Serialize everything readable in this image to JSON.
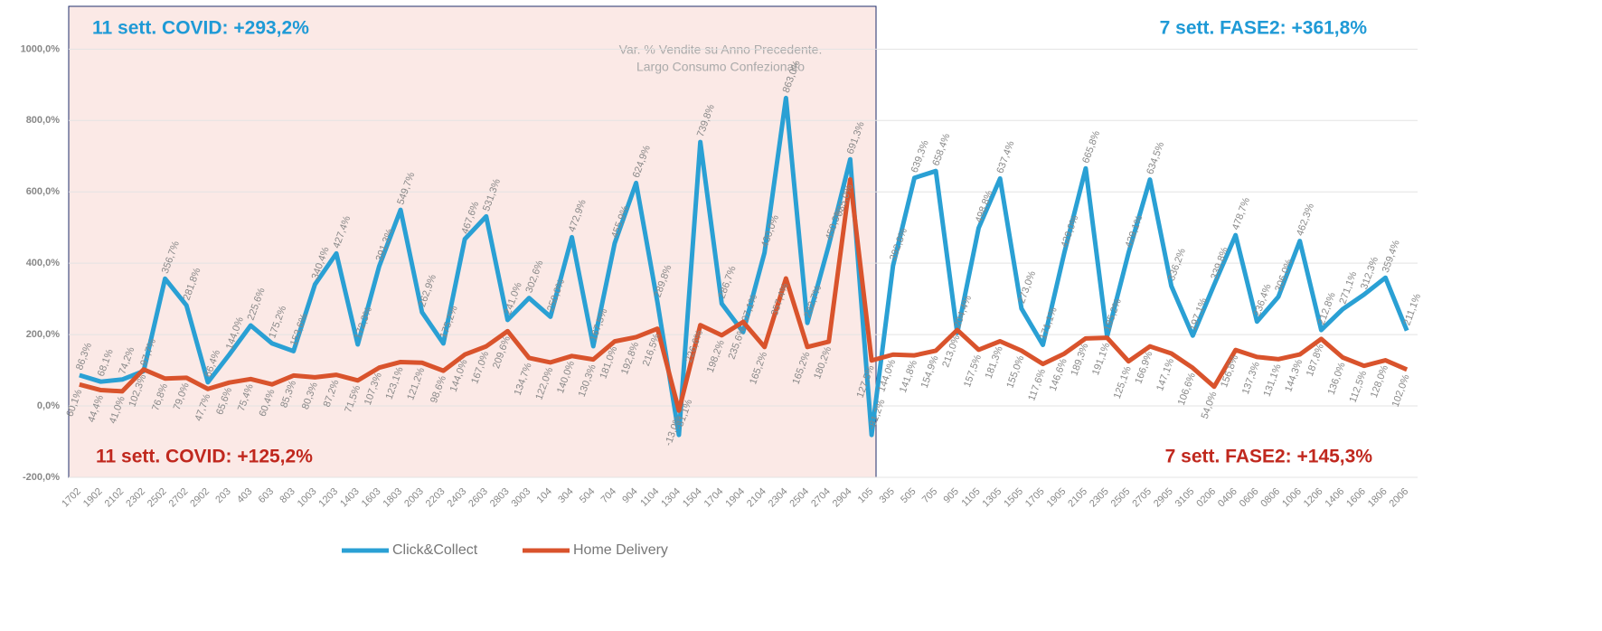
{
  "chart_data": {
    "type": "line",
    "subtitle": [
      "Var. % Vendite su Anno Precedente.",
      "Largo Consumo Confezionato"
    ],
    "annotations": [
      "11 sett. COVID: +293,2%",
      "7 sett. FASE2: +361,8%",
      "11 sett. COVID: +125,2%",
      "7 sett. FASE2: +145,3%"
    ],
    "categories": [
      "1702",
      "1902",
      "2102",
      "2302",
      "2502",
      "2702",
      "2902",
      "203",
      "403",
      "603",
      "803",
      "1003",
      "1203",
      "1403",
      "1603",
      "1803",
      "2003",
      "2203",
      "2403",
      "2603",
      "2803",
      "3003",
      "104",
      "304",
      "504",
      "704",
      "904",
      "1104",
      "1304",
      "1504",
      "1704",
      "1904",
      "2104",
      "2304",
      "2504",
      "2704",
      "2904",
      "105",
      "305",
      "505",
      "705",
      "905",
      "1105",
      "1305",
      "1505",
      "1705",
      "1905",
      "2105",
      "2305",
      "2505",
      "2705",
      "2905",
      "3105",
      "0206",
      "0406",
      "0606",
      "0806",
      "1006",
      "1206",
      "1406",
      "1606",
      "1806",
      "2006"
    ],
    "series": [
      {
        "name": "Click&Collect",
        "color": "#2aa0d4",
        "values": [
          86.3,
          68.1,
          74.2,
          97.7,
          356.7,
          281.8,
          66.4,
          144.0,
          225.6,
          175.2,
          153.6,
          340.4,
          427.4,
          172.3,
          391.3,
          549.7,
          262.9,
          175.2,
          467.6,
          531.3,
          241.0,
          302.6,
          250.0,
          472.9,
          167.5,
          455.9,
          624.9,
          289.8,
          -81.1,
          739.8,
          286.7,
          207.1,
          430.0,
          863.0,
          232.7,
          450.3,
          691.3,
          -81.2,
          392.8,
          639.3,
          658.4,
          204.4,
          498.8,
          637.4,
          273.0,
          171.1,
          429.0,
          665.8,
          195.2,
          429.1,
          634.5,
          336.2,
          197.1,
          339.8,
          478.7,
          236.4,
          306.0,
          462.3,
          212.8,
          271.1,
          312.3,
          359.4,
          211.1
        ],
        "value_labels": [
          "86,3%",
          "68,1%",
          "74,2%",
          "97,7%",
          "356,7%",
          "281,8%",
          "66,4%",
          "144,0%",
          "225,6%",
          "175,2%",
          "153,6%",
          "340,4%",
          "427,4%",
          "172,3%",
          "391,3%",
          "549,7%",
          "262,9%",
          "175,2%",
          "467,6%",
          "531,3%",
          "241,0%",
          "302,6%",
          "250,0%",
          "472,9%",
          "167,5%",
          "455,9%",
          "624,9%",
          "289,8%",
          "-81,1%",
          "739,8%",
          "286,7%",
          "207,1%",
          "430,0%",
          "863,0%",
          "232,7%",
          "450,3%",
          "691,3%",
          "-81,2%",
          "392,8%",
          "639,3%",
          "658,4%",
          "204,4%",
          "498,8%",
          "637,4%",
          "273,0%",
          "171,1%",
          "429,0%",
          "665,8%",
          "195,2%",
          "429,1%",
          "634,5%",
          "336,2%",
          "197,1%",
          "339,8%",
          "478,7%",
          "236,4%",
          "306,0%",
          "462,3%",
          "212,8%",
          "271,1%",
          "312,3%",
          "359,4%",
          "211,1%"
        ]
      },
      {
        "name": "Home Delivery",
        "color": "#d9532c",
        "values": [
          60.1,
          44.4,
          41.0,
          102.3,
          76.8,
          79.0,
          47.7,
          65.6,
          75.4,
          60.4,
          85.3,
          80.3,
          87.2,
          71.5,
          107.3,
          123.1,
          121.2,
          98.6,
          144.0,
          167.0,
          209.6,
          134.7,
          122.0,
          140.0,
          130.3,
          181.0,
          192.8,
          216.5,
          -13.0,
          226.6,
          198.2,
          235.6,
          165.2,
          357.4,
          165.2,
          180.2,
          635.0,
          127.5,
          144.0,
          141.8,
          154.9,
          213.0,
          157.5,
          181.3,
          155.0,
          117.6,
          146.6,
          189.3,
          191.1,
          125.1,
          166.9,
          147.1,
          106.6,
          54.0,
          156.8,
          137.3,
          131.1,
          144.3,
          187.8,
          136.0,
          112.5,
          128.0,
          102.0
        ],
        "value_labels": [
          "60,1%",
          "44,4%",
          "41,0%",
          "102,3%",
          "76,8%",
          "79,0%",
          "47,7%",
          "65,6%",
          "75,4%",
          "60,4%",
          "85,3%",
          "80,3%",
          "87,2%",
          "71,5%",
          "107,3%",
          "123,1%",
          "121,2%",
          "98,6%",
          "144,0%",
          "167,0%",
          "209,6%",
          "134,7%",
          "122,0%",
          "140,0%",
          "130,3%",
          "181,0%",
          "192,8%",
          "216,5%",
          "-13,0%",
          "226,6%",
          "198,2%",
          "235,6%",
          "165,2%",
          "357,4%",
          "165,2%",
          "180,2%",
          "635,0%",
          "127,5%",
          "144,0%",
          "141,8%",
          "154,9%",
          "213,0%",
          "157,5%",
          "181,3%",
          "155,0%",
          "117,6%",
          "146,6%",
          "189,3%",
          "191,1%",
          "125,1%",
          "166,9%",
          "147,1%",
          "106,6%",
          "54,0%",
          "156,8%",
          "137,3%",
          "131,1%",
          "144,3%",
          "187,8%",
          "136,0%",
          "112,5%",
          "128,0%",
          "102,0%"
        ]
      }
    ],
    "ylim": [
      -200,
      1120
    ],
    "yticks": [
      {
        "value": -200,
        "label": "-200,0%"
      },
      {
        "value": 0,
        "label": "0,0%"
      },
      {
        "value": 200,
        "label": "200,0%"
      },
      {
        "value": 400,
        "label": "400,0%"
      },
      {
        "value": 600,
        "label": "600,0%"
      },
      {
        "value": 800,
        "label": "800,0%"
      },
      {
        "value": 1000,
        "label": "1000,0%"
      }
    ],
    "grid": true,
    "legend": "bottom"
  }
}
